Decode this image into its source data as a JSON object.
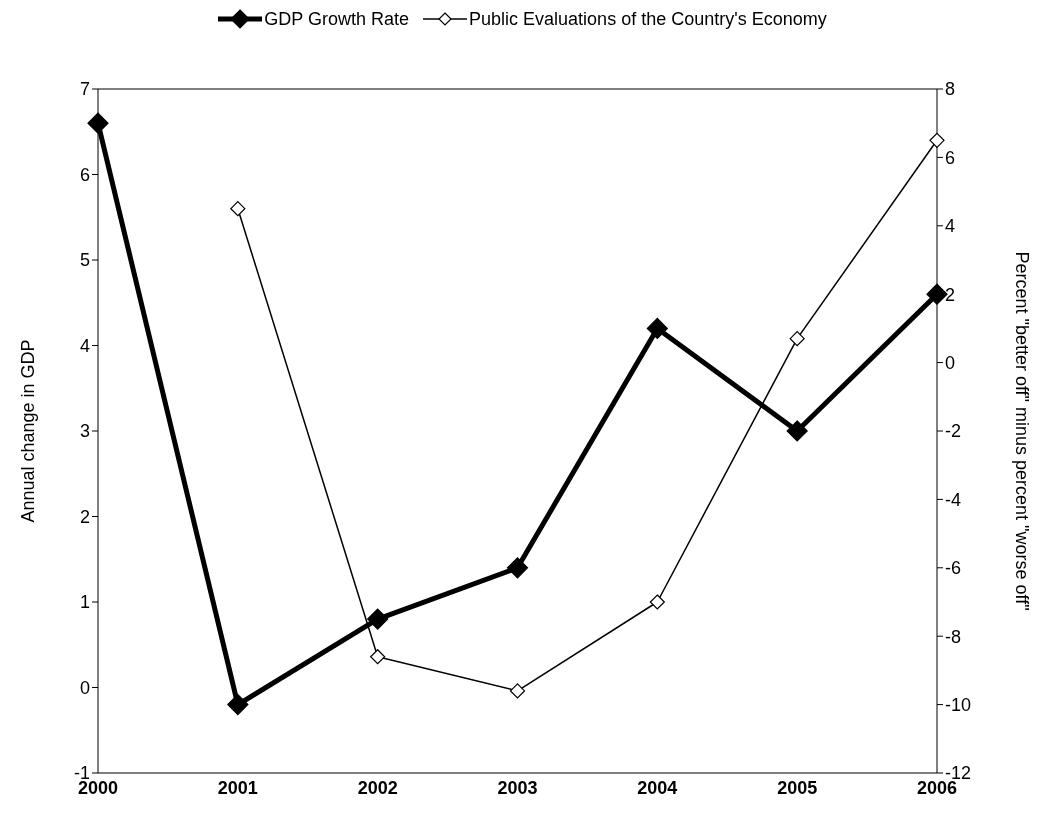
{
  "chart_data": {
    "type": "line",
    "categories": [
      "2000",
      "2001",
      "2002",
      "2003",
      "2004",
      "2005",
      "2006"
    ],
    "series": [
      {
        "name": "GDP Growth Rate",
        "color": "#000000",
        "values": [
          6.6,
          -0.2,
          0.8,
          1.4,
          4.2,
          3.0,
          4.6
        ]
      },
      {
        "name": "Public Evaluations of the Country's Economy",
        "color": "#000000",
        "axis": "y2",
        "values": [
          null,
          4.5,
          -8.6,
          -9.6,
          -7.0,
          0.7,
          6.5
        ]
      }
    ],
    "ylabel": "Annual change in GDP",
    "y2label": "Percent \"better off\" minus percent \"worse off\"",
    "ylim": [
      -1,
      7
    ],
    "yticks": [
      -1,
      0,
      1,
      2,
      3,
      4,
      5,
      6,
      7
    ],
    "y2lim": [
      -12,
      8
    ],
    "y2ticks": [
      -12,
      -10,
      -8,
      -6,
      -4,
      -2,
      0,
      2,
      4,
      6,
      8
    ],
    "marker": "diamond",
    "line_style": "solid",
    "grid": false,
    "legend": "top"
  }
}
